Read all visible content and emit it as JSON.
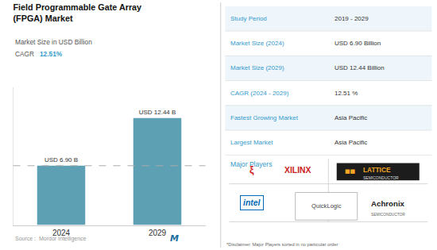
{
  "chart_data": {
    "type": "bar",
    "title": "Field Programmable Gate Array\n(FPGA) Market",
    "subtitle": "Market Size in USD Billion",
    "cagr_label": "CAGR",
    "cagr_value": "12.51%",
    "categories": [
      "2024",
      "2029"
    ],
    "values": [
      6.9,
      12.44
    ],
    "value_labels": [
      "USD 6.90 B",
      "USD 12.44 B"
    ],
    "data_labels": true,
    "color": "#5ea0b3",
    "ylim": [
      0,
      16
    ],
    "yticks": [],
    "tick_labels": "x",
    "grid": false,
    "reference_line": {
      "value": 6.9,
      "line_style": "dashed",
      "color": "#aaaaaa"
    },
    "source": "Source :  Mordor Intelligence",
    "logo": "M",
    "table": [
      [
        "Study Period",
        "2019 - 2029"
      ],
      [
        "Market Size (2024)",
        "USD 6.90 Billion"
      ],
      [
        "Market Size (2029)",
        "USD 12.44 Billion"
      ],
      [
        "CAGR (2024 - 2029)",
        "12.51 %"
      ],
      [
        "Fastest Growing Market",
        "Asia Pacific"
      ],
      [
        "Largest Market",
        "Asia Pacific"
      ]
    ],
    "major_players": "Major Players",
    "logos": [
      [
        "ξ",
        "XILINX"
      ],
      [
        "■■",
        "LATTICE",
        "SEMICONDUCTOR"
      ],
      [
        "intel"
      ],
      [
        "QuickLogic"
      ],
      [
        "Achronix",
        "SEMICONDUCTOR"
      ]
    ],
    "disclaimer": "*Disclaimer: Major Players sorted in no particular order"
  }
}
